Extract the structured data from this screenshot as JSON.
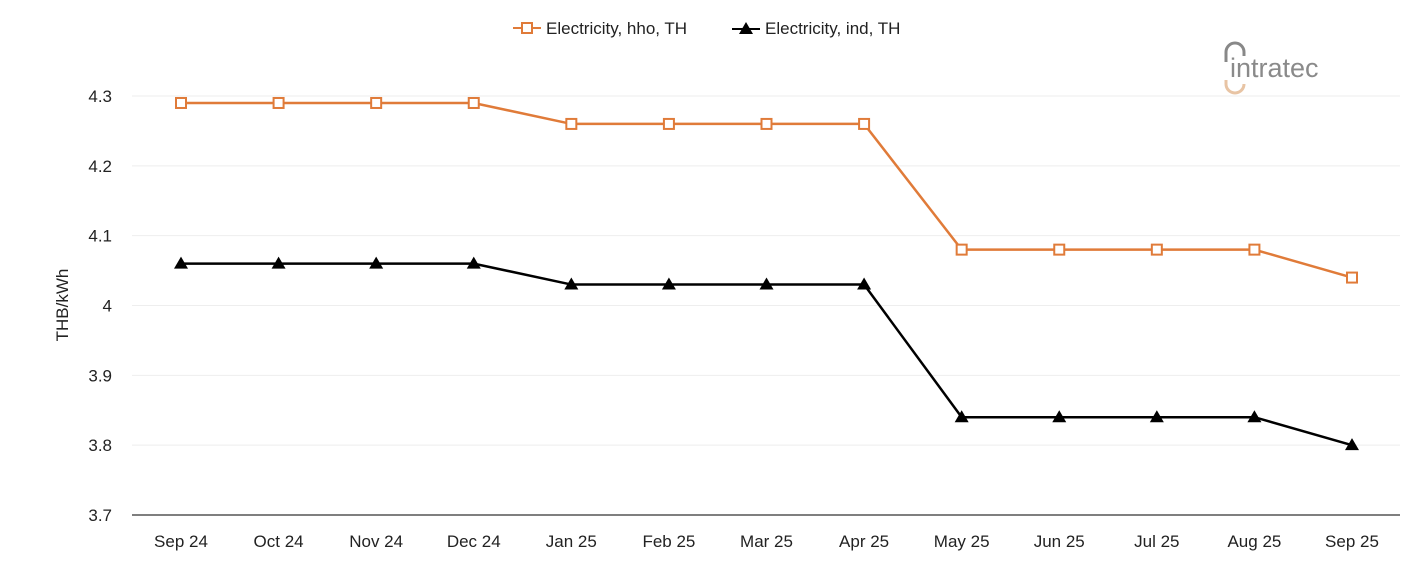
{
  "chart_data": {
    "type": "line",
    "categories": [
      "Sep 24",
      "Oct 24",
      "Nov 24",
      "Dec 24",
      "Jan 25",
      "Feb 25",
      "Mar 25",
      "Apr 25",
      "May 25",
      "Jun 25",
      "Jul 25",
      "Aug 25",
      "Sep 25"
    ],
    "series": [
      {
        "name": "Electricity, hho, TH",
        "color": "#e07b39",
        "marker": "open-square",
        "values": [
          4.29,
          4.29,
          4.29,
          4.29,
          4.26,
          4.26,
          4.26,
          4.26,
          4.08,
          4.08,
          4.08,
          4.08,
          4.04
        ]
      },
      {
        "name": "Electricity, ind, TH",
        "color": "#000000",
        "marker": "filled-triangle",
        "values": [
          4.06,
          4.06,
          4.06,
          4.06,
          4.03,
          4.03,
          4.03,
          4.03,
          3.84,
          3.84,
          3.84,
          3.84,
          3.8
        ]
      }
    ],
    "ylabel": "THB/kWh",
    "xlabel": "",
    "ylim": [
      3.7,
      4.3
    ],
    "yticks": [
      "3.7",
      "3.8",
      "3.9",
      "4",
      "4.1",
      "4.2",
      "4.3"
    ],
    "grid": true,
    "legend": "top-center"
  },
  "logo": {
    "text": "intratec"
  }
}
